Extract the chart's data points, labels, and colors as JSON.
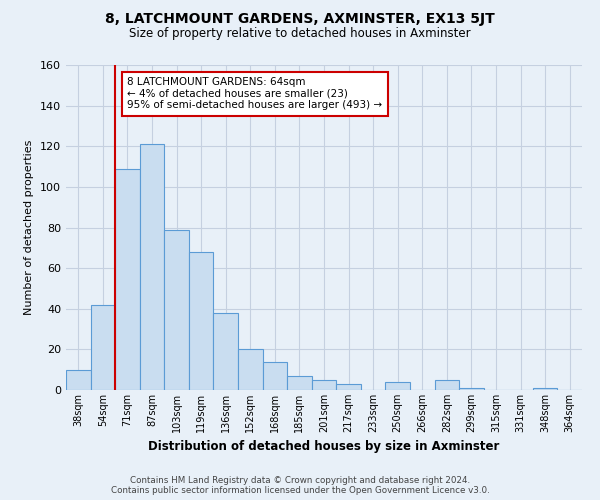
{
  "title": "8, LATCHMOUNT GARDENS, AXMINSTER, EX13 5JT",
  "subtitle": "Size of property relative to detached houses in Axminster",
  "xlabel": "Distribution of detached houses by size in Axminster",
  "ylabel": "Number of detached properties",
  "bar_labels": [
    "38sqm",
    "54sqm",
    "71sqm",
    "87sqm",
    "103sqm",
    "119sqm",
    "136sqm",
    "152sqm",
    "168sqm",
    "185sqm",
    "201sqm",
    "217sqm",
    "233sqm",
    "250sqm",
    "266sqm",
    "282sqm",
    "299sqm",
    "315sqm",
    "331sqm",
    "348sqm",
    "364sqm"
  ],
  "bar_values": [
    10,
    42,
    109,
    121,
    79,
    68,
    38,
    20,
    14,
    7,
    5,
    3,
    0,
    4,
    0,
    5,
    1,
    0,
    0,
    1,
    0
  ],
  "bar_color": "#c9ddf0",
  "bar_edge_color": "#5b9bd5",
  "ylim": [
    0,
    160
  ],
  "yticks": [
    0,
    20,
    40,
    60,
    80,
    100,
    120,
    140,
    160
  ],
  "vline_color": "#cc0000",
  "annotation_text": "8 LATCHMOUNT GARDENS: 64sqm\n← 4% of detached houses are smaller (23)\n95% of semi-detached houses are larger (493) →",
  "footer_line1": "Contains HM Land Registry data © Crown copyright and database right 2024.",
  "footer_line2": "Contains public sector information licensed under the Open Government Licence v3.0.",
  "bg_color": "#e8f0f8",
  "plot_bg_color": "#e8f0f8",
  "grid_color": "#c5d0e0"
}
